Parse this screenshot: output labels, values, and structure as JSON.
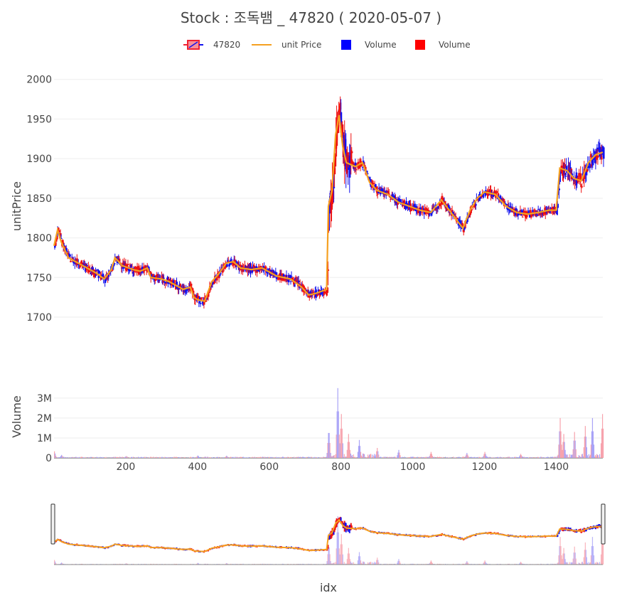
{
  "page": {
    "title": "Stock :  조독뱀 _ 47820 ( 2020-05-07 )"
  },
  "legend": [
    {
      "label": "47820",
      "kind": "candlestick",
      "color": "#ee2233"
    },
    {
      "label": "unit Price",
      "kind": "line",
      "color": "#f5a020"
    },
    {
      "label": "Volume",
      "kind": "square",
      "color": "#0000ff"
    },
    {
      "label": "Volume",
      "kind": "square",
      "color": "#ff0000"
    }
  ],
  "colors": {
    "up": "#ee1111",
    "down": "#1111ee",
    "avg": "#f5a020",
    "vol_up": "#f7a3ad",
    "vol_down": "#a9a3f7"
  },
  "chart_data": {
    "type": "candlestick",
    "title": "Stock :  조독뱀 _ 47820 ( 2020-05-07 )",
    "xlabel": "idx",
    "ylabel_price": "unitPrice",
    "ylabel_volume": "Volume",
    "xlim": [
      0,
      1530
    ],
    "price_ylim": [
      1665,
      2015
    ],
    "volume_ylim": [
      0,
      3600000
    ],
    "x_ticks": [
      "200",
      "400",
      "600",
      "800",
      "1000",
      "1200",
      "1400"
    ],
    "price_ticks": [
      "1700",
      "1750",
      "1800",
      "1850",
      "1900",
      "1950",
      "2000"
    ],
    "volume_ticks": [
      "0",
      "1M",
      "2M",
      "3M"
    ],
    "price_series": [
      [
        0,
        1790
      ],
      [
        10,
        1810
      ],
      [
        20,
        1795
      ],
      [
        40,
        1775
      ],
      [
        60,
        1770
      ],
      [
        80,
        1765
      ],
      [
        100,
        1760
      ],
      [
        120,
        1755
      ],
      [
        140,
        1748
      ],
      [
        160,
        1760
      ],
      [
        170,
        1775
      ],
      [
        190,
        1765
      ],
      [
        220,
        1760
      ],
      [
        240,
        1758
      ],
      [
        260,
        1762
      ],
      [
        270,
        1750
      ],
      [
        300,
        1748
      ],
      [
        320,
        1745
      ],
      [
        340,
        1740
      ],
      [
        360,
        1735
      ],
      [
        380,
        1738
      ],
      [
        390,
        1725
      ],
      [
        400,
        1722
      ],
      [
        420,
        1720
      ],
      [
        440,
        1745
      ],
      [
        460,
        1755
      ],
      [
        480,
        1768
      ],
      [
        500,
        1770
      ],
      [
        520,
        1762
      ],
      [
        550,
        1760
      ],
      [
        580,
        1762
      ],
      [
        620,
        1752
      ],
      [
        660,
        1748
      ],
      [
        690,
        1738
      ],
      [
        710,
        1728
      ],
      [
        730,
        1730
      ],
      [
        760,
        1735
      ],
      [
        765,
        1840
      ],
      [
        775,
        1860
      ],
      [
        785,
        1930
      ],
      [
        795,
        1955
      ],
      [
        805,
        1915
      ],
      [
        815,
        1895
      ],
      [
        840,
        1890
      ],
      [
        860,
        1895
      ],
      [
        880,
        1870
      ],
      [
        900,
        1860
      ],
      [
        930,
        1855
      ],
      [
        960,
        1845
      ],
      [
        990,
        1840
      ],
      [
        1020,
        1835
      ],
      [
        1050,
        1832
      ],
      [
        1080,
        1848
      ],
      [
        1110,
        1830
      ],
      [
        1140,
        1812
      ],
      [
        1160,
        1835
      ],
      [
        1180,
        1850
      ],
      [
        1200,
        1858
      ],
      [
        1230,
        1855
      ],
      [
        1260,
        1840
      ],
      [
        1290,
        1832
      ],
      [
        1320,
        1830
      ],
      [
        1350,
        1832
      ],
      [
        1380,
        1835
      ],
      [
        1400,
        1835
      ],
      [
        1410,
        1888
      ],
      [
        1430,
        1885
      ],
      [
        1450,
        1875
      ],
      [
        1470,
        1872
      ],
      [
        1490,
        1895
      ],
      [
        1510,
        1905
      ],
      [
        1530,
        1908
      ]
    ],
    "volume_spikes": [
      [
        0,
        330000
      ],
      [
        20,
        150000
      ],
      [
        200,
        90000
      ],
      [
        400,
        120000
      ],
      [
        480,
        110000
      ],
      [
        765,
        1500000
      ],
      [
        790,
        3500000
      ],
      [
        800,
        2200000
      ],
      [
        820,
        1200000
      ],
      [
        850,
        900000
      ],
      [
        900,
        500000
      ],
      [
        960,
        400000
      ],
      [
        1050,
        300000
      ],
      [
        1150,
        250000
      ],
      [
        1200,
        300000
      ],
      [
        1300,
        200000
      ],
      [
        1410,
        2000000
      ],
      [
        1420,
        1200000
      ],
      [
        1450,
        1300000
      ],
      [
        1480,
        1600000
      ],
      [
        1500,
        2000000
      ],
      [
        1528,
        2200000
      ]
    ],
    "gridlines": true,
    "range_slider": true
  }
}
